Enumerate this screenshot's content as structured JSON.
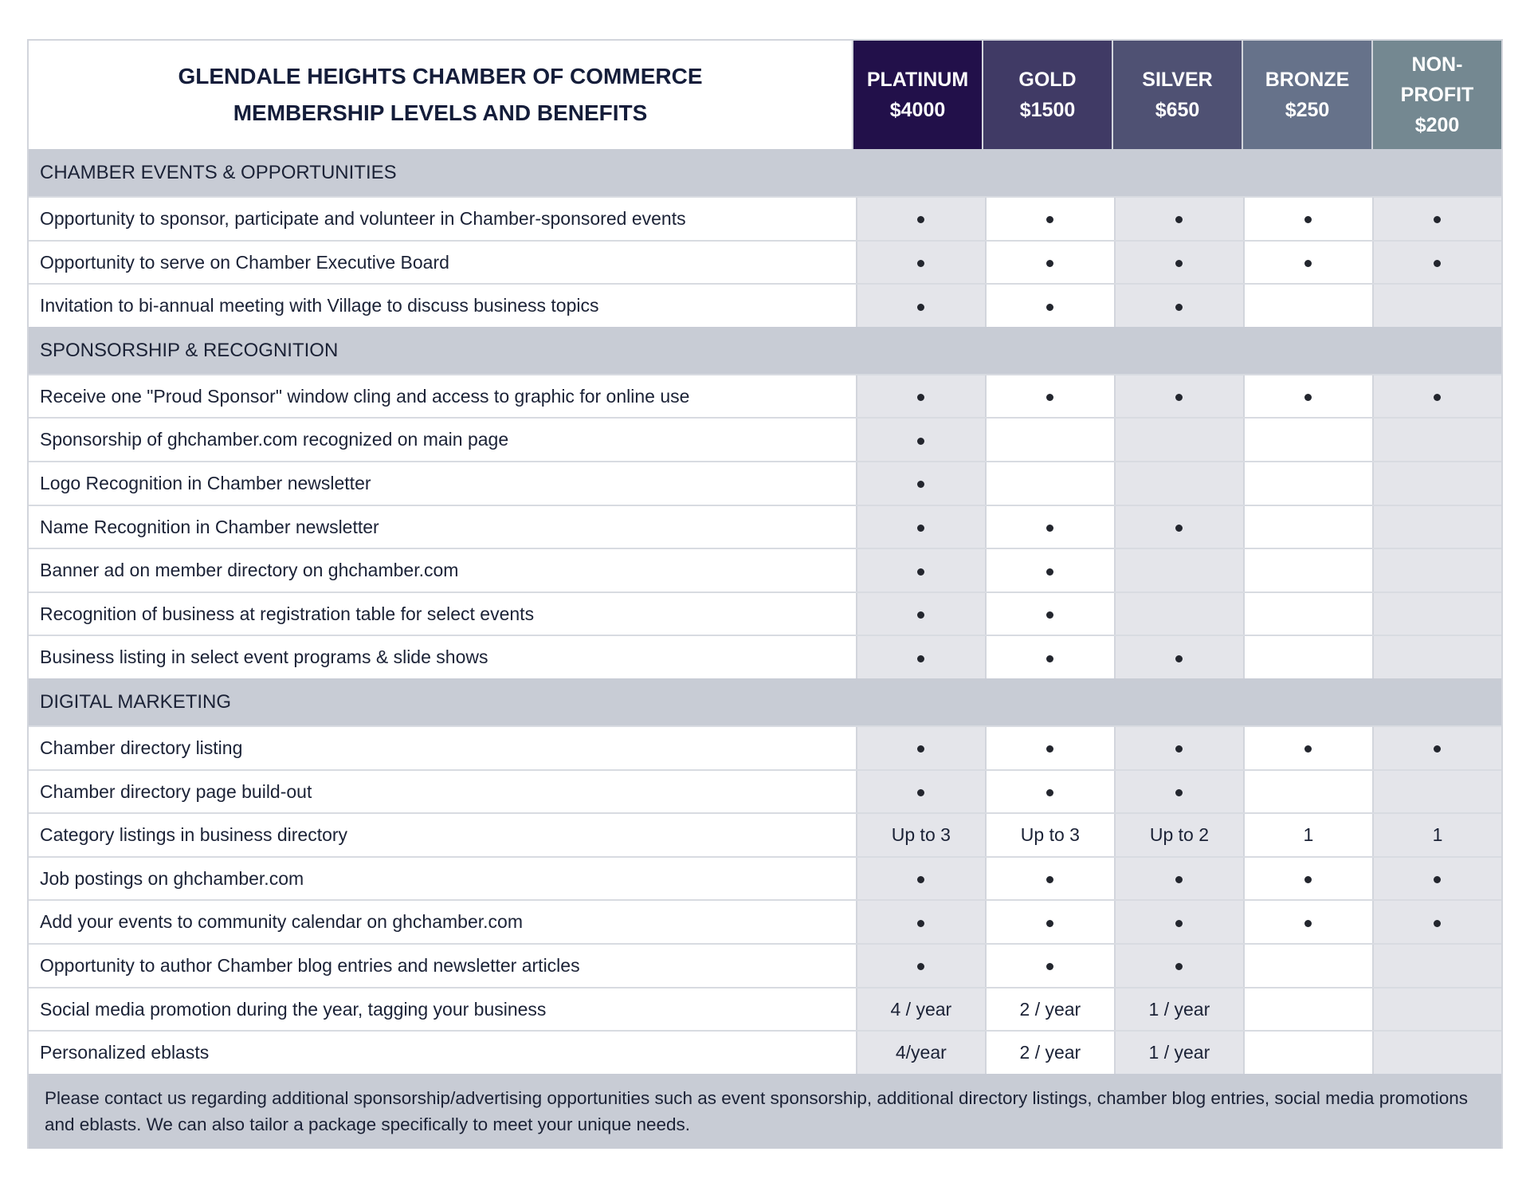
{
  "title": {
    "line1": "GLENDALE HEIGHTS CHAMBER OF COMMERCE",
    "line2": "MEMBERSHIP LEVELS AND BENEFITS"
  },
  "tiers": [
    {
      "name": "PLATINUM",
      "price": "$4000",
      "color": "#22104a"
    },
    {
      "name": "GOLD",
      "price": "$1500",
      "color": "#403a65"
    },
    {
      "name": "SILVER",
      "price": "$650",
      "color": "#4f5173"
    },
    {
      "name": "BRONZE",
      "price": "$250",
      "color": "#66728a"
    },
    {
      "name": "NON-\nPROFIT",
      "price": "$200",
      "color": "#748891"
    }
  ],
  "sections": [
    {
      "title": "CHAMBER EVENTS & OPPORTUNITIES",
      "rows": [
        {
          "label": "Opportunity to sponsor, participate and volunteer in Chamber-sponsored events",
          "values": [
            "•",
            "•",
            "•",
            "•",
            "•"
          ]
        },
        {
          "label": "Opportunity to serve on Chamber Executive Board",
          "values": [
            "•",
            "•",
            "•",
            "•",
            "•"
          ]
        },
        {
          "label": "Invitation to bi-annual meeting with Village to discuss business topics",
          "values": [
            "•",
            "•",
            "•",
            "",
            ""
          ]
        }
      ]
    },
    {
      "title": "SPONSORSHIP & RECOGNITION",
      "rows": [
        {
          "label": "Receive one \"Proud Sponsor\" window cling and access to graphic for online use",
          "values": [
            "•",
            "•",
            "•",
            "•",
            "•"
          ]
        },
        {
          "label": "Sponsorship of ghchamber.com recognized on main page",
          "values": [
            "•",
            "",
            "",
            "",
            ""
          ]
        },
        {
          "label": "Logo Recognition in Chamber newsletter",
          "values": [
            "•",
            "",
            "",
            "",
            ""
          ]
        },
        {
          "label": "Name Recognition in Chamber newsletter",
          "values": [
            "•",
            "•",
            "•",
            "",
            ""
          ]
        },
        {
          "label": "Banner ad on member directory on ghchamber.com",
          "values": [
            "•",
            "•",
            "",
            "",
            ""
          ]
        },
        {
          "label": "Recognition of business at registration table for select events",
          "values": [
            "•",
            "•",
            "",
            "",
            ""
          ]
        },
        {
          "label": "Business listing in select event programs & slide shows",
          "values": [
            "•",
            "•",
            "•",
            "",
            ""
          ]
        }
      ]
    },
    {
      "title": "DIGITAL MARKETING",
      "rows": [
        {
          "label": "Chamber directory listing",
          "values": [
            "•",
            "•",
            "•",
            "•",
            "•"
          ]
        },
        {
          "label": "Chamber directory page build-out",
          "values": [
            "•",
            "•",
            "•",
            "",
            ""
          ]
        },
        {
          "label": "Category listings in business directory",
          "values": [
            "Up to 3",
            "Up to 3",
            "Up to 2",
            "1",
            "1"
          ]
        },
        {
          "label": "Job postings on ghchamber.com",
          "values": [
            "•",
            "•",
            "•",
            "•",
            "•"
          ]
        },
        {
          "label": "Add your events to community calendar on ghchamber.com",
          "values": [
            "•",
            "•",
            "•",
            "•",
            "•"
          ]
        },
        {
          "label": "Opportunity to author Chamber blog entries and newsletter articles",
          "values": [
            "•",
            "•",
            "•",
            "",
            ""
          ]
        },
        {
          "label": "Social media promotion during the year, tagging your business",
          "values": [
            "4 / year",
            "2 / year",
            "1 / year",
            "",
            ""
          ]
        },
        {
          "label": "Personalized eblasts",
          "values": [
            "4/year",
            "2 / year",
            "1 / year",
            "",
            ""
          ]
        }
      ]
    }
  ],
  "footer": "Please contact us regarding additional sponsorship/advertising opportunities such as event sponsorship, additional directory listings, chamber blog entries, social media promotions and eblasts. We can also tailor a package specifically to meet your unique needs."
}
